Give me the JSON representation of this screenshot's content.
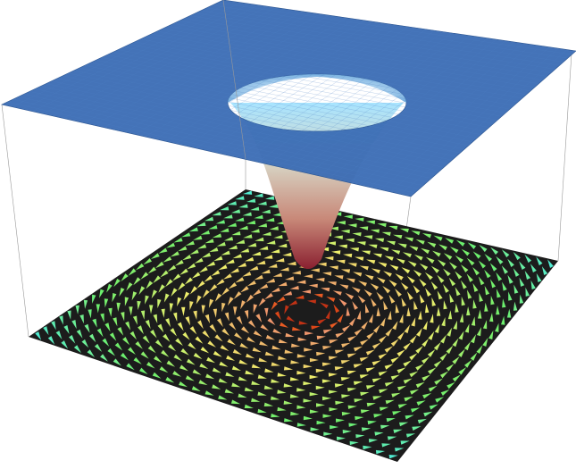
{
  "chart_data": {
    "type": "surface",
    "color": "#3a6cb4"
  }
}
